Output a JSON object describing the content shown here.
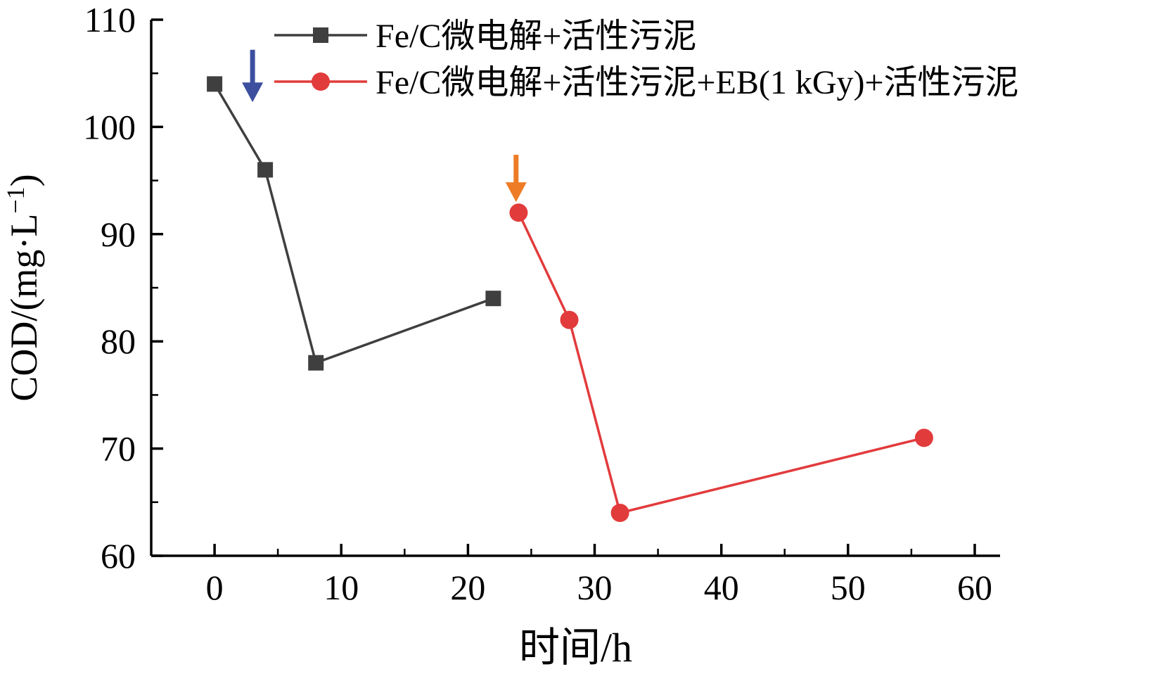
{
  "figure": {
    "background": "#ffffff",
    "axis_color": "#000000",
    "text_color": "#000000"
  },
  "chart_data": {
    "type": "line",
    "title": "",
    "xlabel": "时间/h",
    "ylabel_main": "COD/(mg·L",
    "ylabel_sup": "−1",
    "ylabel_close": ")",
    "xlim": [
      -5,
      62
    ],
    "ylim": [
      60,
      110
    ],
    "x_ticks": [
      0,
      10,
      20,
      30,
      40,
      50,
      60
    ],
    "y_ticks": [
      60,
      70,
      80,
      90,
      100,
      110
    ],
    "x_minor_step": 5,
    "y_minor_step": 5,
    "grid": false,
    "legend_position": "top-inside-left",
    "series": [
      {
        "name": "Fe/C微电解+活性污泥",
        "color": "#3f3f3f",
        "marker": "square",
        "x": [
          0,
          4,
          8,
          22
        ],
        "y": [
          104,
          96,
          78,
          84
        ]
      },
      {
        "name": "Fe/C微电解+活性污泥+EB(1 kGy)+活性污泥",
        "color": "#e23b3c",
        "marker": "circle",
        "x": [
          24,
          28,
          32,
          56
        ],
        "y": [
          92,
          82,
          64,
          71
        ]
      }
    ],
    "annotations": [
      {
        "name": "blue-down-arrow",
        "color": "#3c4f9f",
        "x": 3.0,
        "y_from": 107.2,
        "y_to": 102.3
      },
      {
        "name": "orange-down-arrow",
        "color": "#ee7c26",
        "x": 23.8,
        "y_from": 97.4,
        "y_to": 93.0
      }
    ]
  }
}
